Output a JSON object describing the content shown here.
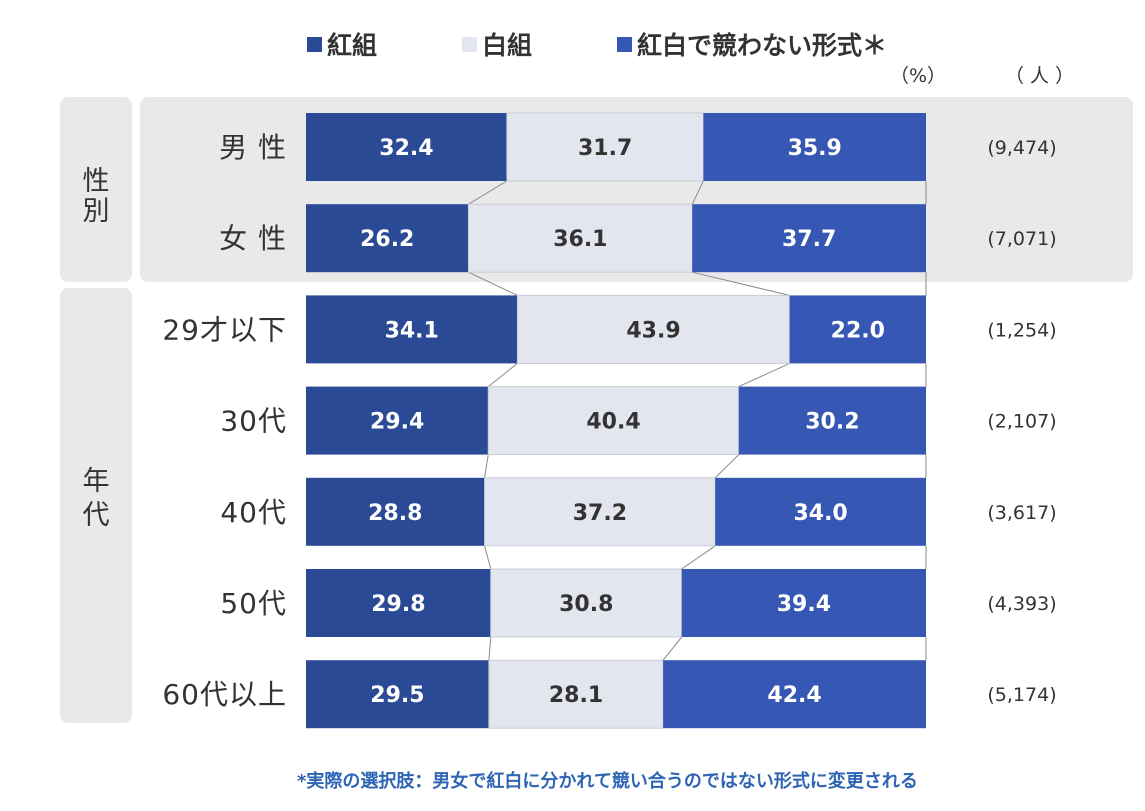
{
  "legend": {
    "items": [
      {
        "label": "紅組",
        "color": "#2b4a96"
      },
      {
        "label": "白組",
        "color": "#e4e6ef"
      },
      {
        "label": "紅白で競わない形式＊",
        "color": "#3657b3"
      }
    ]
  },
  "units": {
    "percent": "（%）",
    "persons": "（ 人 ）"
  },
  "groups": [
    {
      "label": "性別",
      "rows": [
        0,
        1
      ]
    },
    {
      "label": "年代",
      "rows": [
        2,
        3,
        4,
        5,
        6
      ]
    }
  ],
  "footnote": "*実際の選択肢：男女で紅白に分かれて競い合うのではない形式に変更される",
  "chart_data": {
    "type": "bar",
    "orientation": "horizontal",
    "stacked": "100%",
    "categories": [
      "男 性",
      "女 性",
      "29才以下",
      "30代",
      "40代",
      "50代",
      "60代以上"
    ],
    "series": [
      {
        "name": "紅組",
        "values": [
          32.4,
          26.2,
          34.1,
          29.4,
          28.8,
          29.8,
          29.5
        ]
      },
      {
        "name": "白組",
        "values": [
          31.7,
          36.1,
          43.9,
          40.4,
          37.2,
          30.8,
          28.1
        ]
      },
      {
        "name": "紅白で競わない形式＊",
        "values": [
          35.9,
          37.7,
          22.0,
          30.2,
          34.0,
          39.4,
          42.4
        ]
      }
    ],
    "value_labels": [
      [
        "32.4",
        "31.7",
        "35.9"
      ],
      [
        "26.2",
        "36.1",
        "37.7"
      ],
      [
        "34.1",
        "43.9",
        "22.0"
      ],
      [
        "29.4",
        "40.4",
        "30.2"
      ],
      [
        "28.8",
        "37.2",
        "34.0"
      ],
      [
        "29.8",
        "30.8",
        "39.4"
      ],
      [
        "29.5",
        "28.1",
        "42.4"
      ]
    ],
    "sample_sizes": [
      "(9,474)",
      "(7,071)",
      "(1,254)",
      "(2,107)",
      "(3,617)",
      "(4,393)",
      "(5,174)"
    ],
    "xlim": [
      0,
      100
    ],
    "legend_position": "top",
    "grid": false
  }
}
